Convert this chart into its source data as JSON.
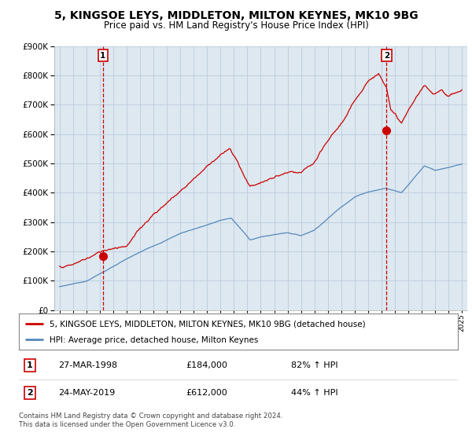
{
  "title": "5, KINGSOE LEYS, MIDDLETON, MILTON KEYNES, MK10 9BG",
  "subtitle": "Price paid vs. HM Land Registry's House Price Index (HPI)",
  "legend_line1": "5, KINGSOE LEYS, MIDDLETON, MILTON KEYNES, MK10 9BG (detached house)",
  "legend_line2": "HPI: Average price, detached house, Milton Keynes",
  "sale1_label": "1",
  "sale1_date": "27-MAR-1998",
  "sale1_price": "£184,000",
  "sale1_hpi": "82% ↑ HPI",
  "sale2_label": "2",
  "sale2_date": "24-MAY-2019",
  "sale2_price": "£612,000",
  "sale2_hpi": "44% ↑ HPI",
  "footnote": "Contains HM Land Registry data © Crown copyright and database right 2024.\nThis data is licensed under the Open Government Licence v3.0.",
  "red_color": "#cc0000",
  "blue_color": "#5588bb",
  "plot_bg_color": "#dde8f0",
  "background_color": "#ffffff",
  "grid_color": "#bbccdd",
  "sale1_year": 1998.23,
  "sale1_value": 184000,
  "sale2_year": 2019.38,
  "sale2_value": 612000,
  "ylim_min": 0,
  "ylim_max": 900000,
  "xlim_min": 1994.6,
  "xlim_max": 2025.4
}
